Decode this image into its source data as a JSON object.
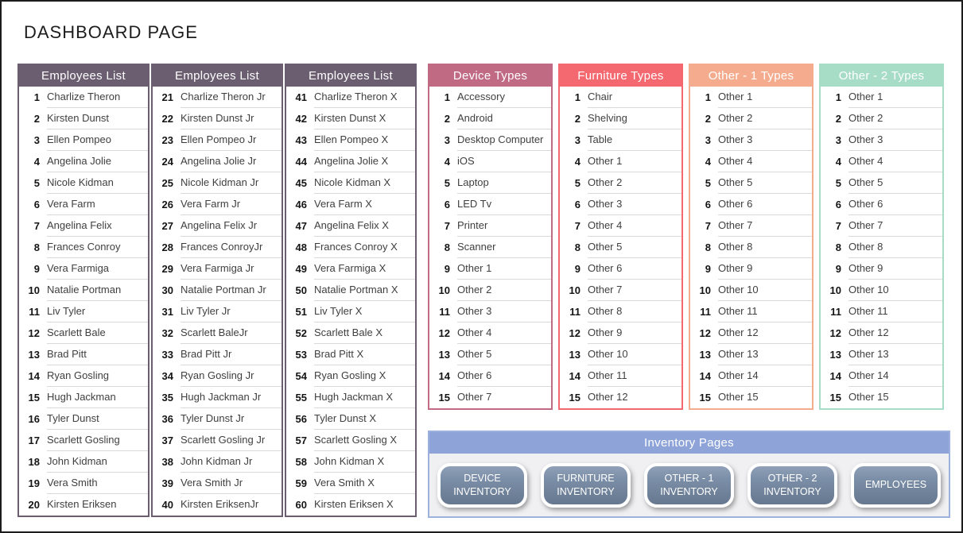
{
  "page": {
    "title": "DASHBOARD PAGE"
  },
  "lists": [
    {
      "name": "employees-list-1",
      "title": "Employees List",
      "color": "#6A5E70",
      "start": 1,
      "items": [
        "Charlize Theron",
        "Kirsten Dunst",
        "Ellen Pompeo",
        "Angelina Jolie",
        "Nicole Kidman",
        "Vera Farm",
        "Angelina Felix",
        "Frances Conroy",
        "Vera Farmiga",
        "Natalie Portman",
        "Liv Tyler",
        "Scarlett Bale",
        "Brad Pitt",
        "Ryan Gosling",
        "Hugh Jackman",
        "Tyler Dunst",
        "Scarlett Gosling",
        "John Kidman",
        "Vera Smith",
        "Kirsten Eriksen"
      ]
    },
    {
      "name": "employees-list-2",
      "title": "Employees List",
      "color": "#6A5E70",
      "start": 21,
      "items": [
        "Charlize Theron Jr",
        "Kirsten Dunst Jr",
        "Ellen Pompeo Jr",
        "Angelina Jolie Jr",
        "Nicole Kidman Jr",
        "Vera Farm Jr",
        "Angelina Felix Jr",
        "Frances ConroyJr",
        "Vera Farmiga Jr",
        "Natalie Portman Jr",
        "Liv Tyler Jr",
        "Scarlett BaleJr",
        "Brad Pitt Jr",
        "Ryan Gosling Jr",
        "Hugh Jackman Jr",
        "Tyler Dunst Jr",
        "Scarlett Gosling Jr",
        "John Kidman Jr",
        "Vera Smith Jr",
        "Kirsten EriksenJr"
      ]
    },
    {
      "name": "employees-list-3",
      "title": "Employees List",
      "color": "#6A5E70",
      "start": 41,
      "items": [
        "Charlize Theron X",
        "Kirsten Dunst X",
        "Ellen Pompeo X",
        "Angelina Jolie X",
        "Nicole Kidman X",
        "Vera Farm X",
        "Angelina Felix X",
        "Frances Conroy X",
        "Vera Farmiga X",
        "Natalie Portman X",
        "Liv Tyler X",
        "Scarlett Bale X",
        "Brad Pitt X",
        "Ryan Gosling X",
        "Hugh Jackman X",
        "Tyler Dunst X",
        "Scarlett Gosling X",
        "John Kidman X",
        "Vera Smith X",
        "Kirsten Eriksen X"
      ]
    },
    {
      "name": "device-types-list",
      "title": "Device Types",
      "color": "#C06A83",
      "start": 1,
      "items": [
        "Accessory",
        "Android",
        "Desktop Computer",
        "iOS",
        "Laptop",
        "LED Tv",
        "Printer",
        "Scanner",
        "Other 1",
        "Other 2",
        "Other 3",
        "Other 4",
        "Other 5",
        "Other 6",
        "Other 7"
      ]
    },
    {
      "name": "furniture-types-list",
      "title": "Furniture Types",
      "color": "#F4686F",
      "start": 1,
      "items": [
        "Chair",
        "Shelving",
        "Table",
        "Other 1",
        "Other 2",
        "Other 3",
        "Other 4",
        "Other 5",
        "Other 6",
        "Other 7",
        "Other 8",
        "Other 9",
        "Other 10",
        "Other 11",
        "Other 12"
      ]
    },
    {
      "name": "other-1-types-list",
      "title": "Other - 1 Types",
      "color": "#F5AC8E",
      "start": 1,
      "items": [
        "Other 1",
        "Other 2",
        "Other 3",
        "Other 4",
        "Other 5",
        "Other 6",
        "Other 7",
        "Other 8",
        "Other 9",
        "Other 10",
        "Other 11",
        "Other 12",
        "Other 13",
        "Other 14",
        "Other 15"
      ]
    },
    {
      "name": "other-2-types-list",
      "title": "Other - 2 Types",
      "color": "#A7DCC6",
      "start": 1,
      "items": [
        "Other 1",
        "Other 2",
        "Other 3",
        "Other 4",
        "Other 5",
        "Other 6",
        "Other 7",
        "Other 8",
        "Other 9",
        "Other 10",
        "Other 11",
        "Other 12",
        "Other 13",
        "Other 14",
        "Other 15"
      ]
    }
  ],
  "inventory": {
    "title": "Inventory Pages",
    "band_color": "#8EA4D8",
    "border_color": "#9DB1DE",
    "buttons": [
      {
        "name": "device-inventory-button",
        "label": "DEVICE INVENTORY"
      },
      {
        "name": "furniture-inventory-button",
        "label": "FURNITURE INVENTORY"
      },
      {
        "name": "other-1-inventory-button",
        "label": "OTHER - 1 INVENTORY"
      },
      {
        "name": "other-2-inventory-button",
        "label": "OTHER - 2 INVENTORY"
      },
      {
        "name": "employees-button",
        "label": "EMPLOYEES"
      }
    ]
  }
}
